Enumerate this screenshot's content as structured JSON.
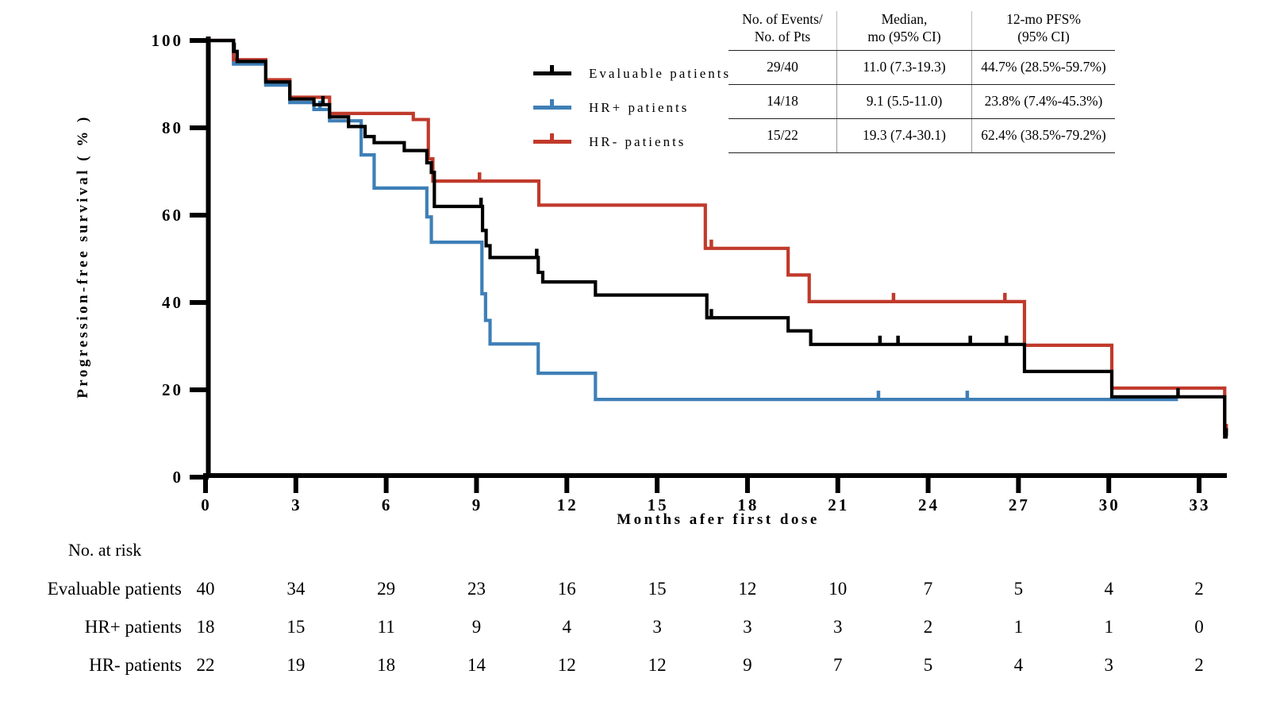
{
  "chart_data": {
    "type": "line",
    "subtype": "kaplan-meier-step",
    "title": "",
    "xlabel": "Months afer first dose",
    "ylabel": "Progression-free survival ( % )",
    "xlim": [
      0,
      34.5
    ],
    "ylim": [
      0,
      100
    ],
    "xticks": [
      0,
      3,
      6,
      9,
      12,
      15,
      18,
      21,
      24,
      27,
      30,
      33
    ],
    "yticks": [
      0,
      20,
      40,
      60,
      80,
      100
    ],
    "grid": false,
    "legend_position": "upper-left-of-table",
    "series": [
      {
        "name": "Evaluable patients",
        "color": "#000000",
        "end_month": 33.95,
        "steps": [
          [
            0,
            100
          ],
          [
            0.93,
            97.5
          ],
          [
            1.05,
            95.2
          ],
          [
            2.0,
            90.5
          ],
          [
            2.8,
            86.6
          ],
          [
            3.6,
            85.3
          ],
          [
            4.12,
            82.5
          ],
          [
            4.75,
            80.3
          ],
          [
            5.3,
            78.0
          ],
          [
            5.6,
            76.6
          ],
          [
            6.6,
            74.8
          ],
          [
            7.35,
            72.0
          ],
          [
            7.5,
            69.8
          ],
          [
            7.6,
            62.0
          ],
          [
            9.2,
            56.5
          ],
          [
            9.32,
            53.0
          ],
          [
            9.45,
            50.3
          ],
          [
            11.05,
            46.9
          ],
          [
            11.2,
            44.7
          ],
          [
            12.95,
            41.7
          ],
          [
            16.65,
            36.5
          ],
          [
            19.35,
            33.5
          ],
          [
            20.1,
            30.4
          ],
          [
            27.2,
            24.2
          ],
          [
            30.1,
            18.4
          ],
          [
            33.85,
            9.2
          ]
        ],
        "censor_marks": [
          [
            0.95,
            97.5
          ],
          [
            3.9,
            85.3
          ],
          [
            9.15,
            62.0
          ],
          [
            11.0,
            50.3
          ],
          [
            16.8,
            36.5
          ],
          [
            22.4,
            30.4
          ],
          [
            23.0,
            30.4
          ],
          [
            25.4,
            30.4
          ],
          [
            26.6,
            30.4
          ],
          [
            32.3,
            18.4
          ],
          [
            33.9,
            9.2
          ]
        ]
      },
      {
        "name": "HR+ patients",
        "color": "#3E7FB7",
        "end_month": 32.3,
        "steps": [
          [
            0,
            100
          ],
          [
            0.93,
            94.6
          ],
          [
            2.0,
            89.8
          ],
          [
            2.8,
            85.8
          ],
          [
            3.6,
            84.2
          ],
          [
            4.12,
            81.6
          ],
          [
            5.17,
            73.8
          ],
          [
            5.6,
            66.2
          ],
          [
            7.35,
            59.6
          ],
          [
            7.5,
            53.8
          ],
          [
            9.18,
            42.0
          ],
          [
            9.3,
            35.9
          ],
          [
            9.45,
            30.5
          ],
          [
            11.05,
            23.8
          ],
          [
            12.95,
            17.8
          ]
        ],
        "censor_marks": [
          [
            3.8,
            84.2
          ],
          [
            22.35,
            17.8
          ],
          [
            25.3,
            17.8
          ]
        ]
      },
      {
        "name": "HR- patients",
        "color": "#C03A2B",
        "end_month": 33.95,
        "steps": [
          [
            0,
            100
          ],
          [
            0.93,
            95.6
          ],
          [
            2.0,
            91.0
          ],
          [
            2.8,
            87.0
          ],
          [
            4.12,
            83.3
          ],
          [
            6.9,
            81.9
          ],
          [
            7.4,
            72.9
          ],
          [
            7.55,
            67.8
          ],
          [
            11.07,
            62.3
          ],
          [
            16.6,
            52.4
          ],
          [
            19.35,
            46.3
          ],
          [
            20.05,
            40.2
          ],
          [
            27.2,
            30.2
          ],
          [
            30.1,
            20.4
          ],
          [
            33.85,
            10.2
          ]
        ],
        "censor_marks": [
          [
            9.1,
            67.8
          ],
          [
            16.8,
            52.4
          ],
          [
            22.85,
            40.2
          ],
          [
            26.55,
            40.2
          ],
          [
            33.9,
            10.2
          ]
        ]
      }
    ]
  },
  "stats_table": {
    "headers": [
      [
        "No. of Events/",
        "No. of Pts"
      ],
      [
        "Median,",
        "mo (95% CI)"
      ],
      [
        "12-mo PFS%",
        "(95% CI)"
      ]
    ],
    "rows": [
      [
        "29/40",
        "11.0 (7.3-19.3)",
        "44.7% (28.5%-59.7%)"
      ],
      [
        "14/18",
        "9.1 (5.5-11.0)",
        "23.8% (7.4%-45.3%)"
      ],
      [
        "15/22",
        "19.3 (7.4-30.1)",
        "62.4% (38.5%-79.2%)"
      ]
    ]
  },
  "risk_table": {
    "title": "No. at risk",
    "months": [
      0,
      3,
      6,
      9,
      12,
      15,
      18,
      21,
      24,
      27,
      30,
      33
    ],
    "rows": [
      {
        "label": "Evaluable patients",
        "counts": [
          40,
          34,
          29,
          23,
          16,
          15,
          12,
          10,
          7,
          5,
          4,
          2
        ]
      },
      {
        "label": "HR+ patients",
        "counts": [
          18,
          15,
          11,
          9,
          4,
          3,
          3,
          3,
          2,
          1,
          1,
          0
        ]
      },
      {
        "label": "HR- patients",
        "counts": [
          22,
          19,
          18,
          14,
          12,
          12,
          9,
          7,
          5,
          4,
          3,
          2
        ]
      }
    ]
  },
  "colors": {
    "evaluable": "#000000",
    "hr_plus": "#3E7FB7",
    "hr_minus": "#C03A2B"
  }
}
